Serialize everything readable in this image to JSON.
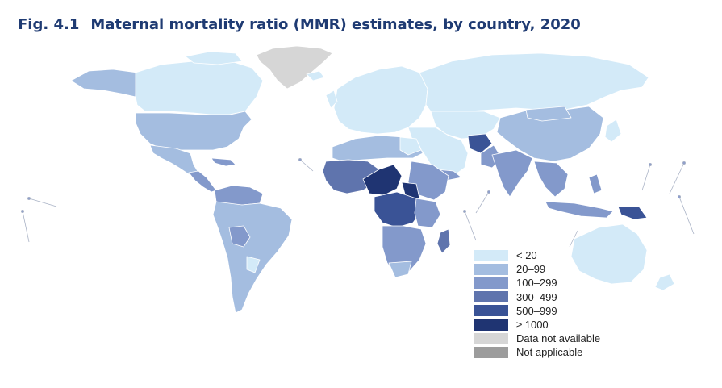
{
  "title": {
    "figure_number": "Fig. 4.1",
    "text": "Maternal mortality ratio (MMR) estimates, by country, 2020"
  },
  "legend": {
    "items": [
      {
        "label": "< 20",
        "color": "#d3eaf8"
      },
      {
        "label": "20–99",
        "color": "#a4bde0"
      },
      {
        "label": "100–299",
        "color": "#8399cb"
      },
      {
        "label": "300–499",
        "color": "#5f74ad"
      },
      {
        "label": "500–999",
        "color": "#3a5396"
      },
      {
        "label": "≥ 1000",
        "color": "#1f3472"
      },
      {
        "label": "Data not available",
        "color": "#d6d6d6"
      },
      {
        "label": "Not applicable",
        "color": "#9c9c9c"
      }
    ]
  }
}
